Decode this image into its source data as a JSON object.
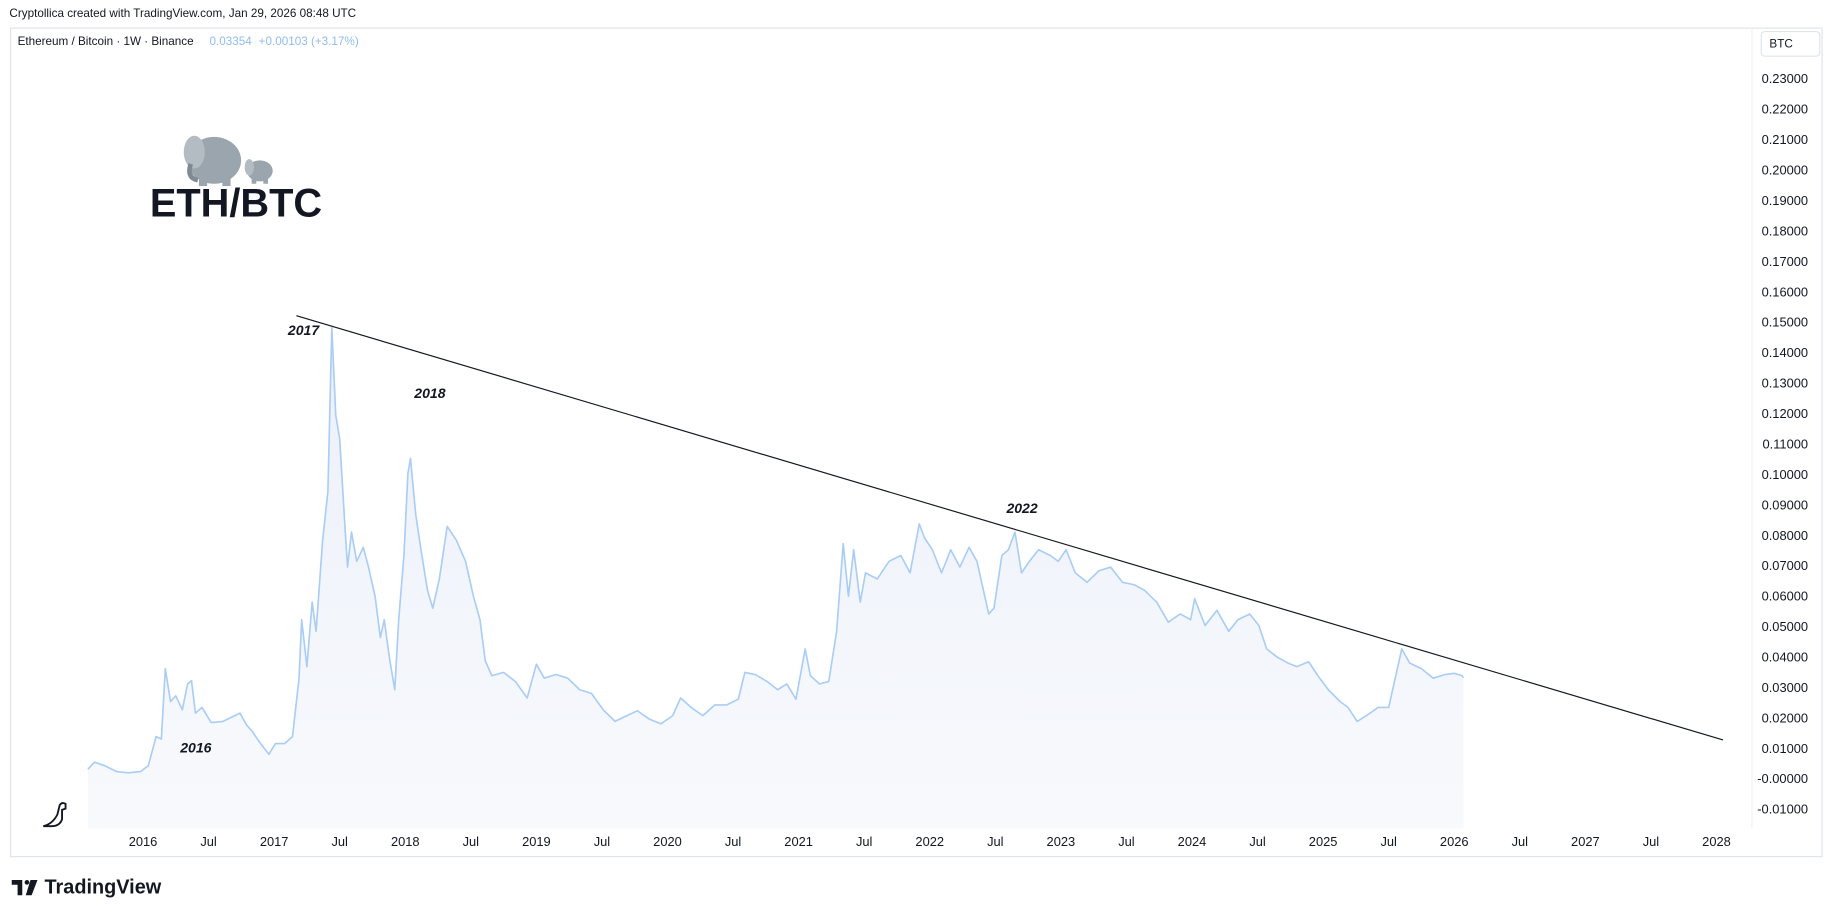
{
  "header": {
    "attribution": "Cryptollica created with TradingView.com, Jan 29, 2026 08:48 UTC"
  },
  "chart_data": {
    "type": "area",
    "title": "ETH/BTC",
    "last_price": "0.03354",
    "change": "+0.00103 (+3.17%)",
    "currency_button": "BTC",
    "annotations": [
      "2016",
      "2017",
      "2018",
      "2022"
    ],
    "x": [
      2015.58,
      2015.63,
      2015.71,
      2015.8,
      2015.89,
      2015.98,
      2016.04,
      2016.1,
      2016.14,
      2016.17,
      2016.21,
      2016.25,
      2016.3,
      2016.34,
      2016.37,
      2016.4,
      2016.45,
      2016.52,
      2016.61,
      2016.7,
      2016.74,
      2016.79,
      2016.83,
      2016.89,
      2016.96,
      2017.01,
      2017.08,
      2017.14,
      2017.19,
      2017.21,
      2017.25,
      2017.29,
      2017.32,
      2017.37,
      2017.41,
      2017.44,
      2017.47,
      2017.5,
      2017.54,
      2017.56,
      2017.59,
      2017.63,
      2017.68,
      2017.72,
      2017.77,
      2017.81,
      2017.84,
      2017.88,
      2017.92,
      2017.95,
      2017.99,
      2018.02,
      2018.04,
      2018.08,
      2018.12,
      2018.17,
      2018.21,
      2018.26,
      2018.32,
      2018.39,
      2018.46,
      2018.52,
      2018.57,
      2018.61,
      2018.66,
      2018.75,
      2018.84,
      2018.93,
      2019.0,
      2019.06,
      2019.15,
      2019.24,
      2019.33,
      2019.42,
      2019.51,
      2019.6,
      2019.69,
      2019.77,
      2019.86,
      2019.95,
      2020.04,
      2020.1,
      2020.18,
      2020.27,
      2020.36,
      2020.45,
      2020.54,
      2020.59,
      2020.67,
      2020.76,
      2020.84,
      2020.91,
      2020.98,
      2021.05,
      2021.09,
      2021.16,
      2021.23,
      2021.29,
      2021.34,
      2021.38,
      2021.42,
      2021.47,
      2021.51,
      2021.6,
      2021.69,
      2021.78,
      2021.85,
      2021.92,
      2021.96,
      2022.02,
      2022.09,
      2022.16,
      2022.23,
      2022.3,
      2022.36,
      2022.41,
      2022.45,
      2022.49,
      2022.55,
      2022.6,
      2022.65,
      2022.7,
      2022.76,
      2022.83,
      2022.92,
      2022.98,
      2023.04,
      2023.11,
      2023.2,
      2023.29,
      2023.38,
      2023.47,
      2023.56,
      2023.64,
      2023.73,
      2023.82,
      2023.91,
      2023.99,
      2024.02,
      2024.1,
      2024.19,
      2024.28,
      2024.35,
      2024.44,
      2024.51,
      2024.57,
      2024.65,
      2024.73,
      2024.8,
      2024.89,
      2024.96,
      2025.04,
      2025.13,
      2025.19,
      2025.26,
      2025.33,
      2025.42,
      2025.5,
      2025.55,
      2025.6,
      2025.66,
      2025.75,
      2025.84,
      2025.93,
      2026.0,
      2026.06,
      2026.07
    ],
    "series": [
      {
        "name": "Ethereum / Bitcoin · 1W · Binance",
        "color": "#a9cdf4",
        "values": [
          0.0035,
          0.0058,
          0.0046,
          0.0027,
          0.0023,
          0.0027,
          0.0046,
          0.0142,
          0.0134,
          0.0365,
          0.0257,
          0.0276,
          0.023,
          0.0315,
          0.0326,
          0.0219,
          0.0238,
          0.0188,
          0.0192,
          0.0211,
          0.0219,
          0.018,
          0.0161,
          0.0123,
          0.0084,
          0.0119,
          0.0119,
          0.0142,
          0.0334,
          0.0526,
          0.0372,
          0.0584,
          0.0488,
          0.0787,
          0.0948,
          0.1486,
          0.1198,
          0.1121,
          0.0833,
          0.0699,
          0.0814,
          0.0718,
          0.0764,
          0.0699,
          0.0603,
          0.0468,
          0.0526,
          0.0399,
          0.0296,
          0.0526,
          0.0737,
          0.1006,
          0.1056,
          0.0872,
          0.0756,
          0.0622,
          0.0564,
          0.066,
          0.0833,
          0.0787,
          0.0718,
          0.0603,
          0.0526,
          0.0392,
          0.0342,
          0.0353,
          0.0323,
          0.0269,
          0.038,
          0.0334,
          0.0346,
          0.0334,
          0.0296,
          0.0284,
          0.023,
          0.0192,
          0.0211,
          0.0227,
          0.02,
          0.0184,
          0.0211,
          0.0269,
          0.0238,
          0.0211,
          0.0246,
          0.0246,
          0.0265,
          0.0353,
          0.0346,
          0.0323,
          0.0296,
          0.0315,
          0.0265,
          0.043,
          0.0342,
          0.0315,
          0.0323,
          0.0488,
          0.0776,
          0.0603,
          0.0756,
          0.0584,
          0.068,
          0.066,
          0.0718,
          0.0737,
          0.068,
          0.0841,
          0.0795,
          0.0756,
          0.068,
          0.0756,
          0.0699,
          0.0764,
          0.0718,
          0.0622,
          0.0545,
          0.0564,
          0.0737,
          0.0756,
          0.0814,
          0.068,
          0.0718,
          0.0756,
          0.0737,
          0.0718,
          0.0756,
          0.068,
          0.0649,
          0.0687,
          0.0699,
          0.0649,
          0.0641,
          0.0622,
          0.0584,
          0.0518,
          0.0545,
          0.0526,
          0.0595,
          0.0507,
          0.0557,
          0.0488,
          0.0526,
          0.0545,
          0.0507,
          0.043,
          0.0403,
          0.0384,
          0.0372,
          0.0388,
          0.0342,
          0.0296,
          0.0257,
          0.0238,
          0.0192,
          0.0211,
          0.0238,
          0.0238,
          0.0334,
          0.043,
          0.0384,
          0.0365,
          0.0334,
          0.0346,
          0.035,
          0.0342,
          0.0335
        ]
      }
    ],
    "trendline": {
      "x": [
        2017.17,
        2028.05
      ],
      "values": [
        0.1525,
        0.0131
      ],
      "color": "#131722"
    },
    "xlim": [
      2014.99,
      2028.27
    ],
    "ylim": [
      -0.016,
      0.247
    ],
    "xticks": [
      2016,
      {
        "value": 2016.5,
        "label": "Jul"
      },
      2017,
      {
        "value": 2017.5,
        "label": "Jul"
      },
      2018,
      {
        "value": 2018.5,
        "label": "Jul"
      },
      2019,
      {
        "value": 2019.5,
        "label": "Jul"
      },
      2020,
      {
        "value": 2020.5,
        "label": "Jul"
      },
      2021,
      {
        "value": 2021.5,
        "label": "Jul"
      },
      2022,
      {
        "value": 2022.5,
        "label": "Jul"
      },
      2023,
      {
        "value": 2023.5,
        "label": "Jul"
      },
      2024,
      {
        "value": 2024.5,
        "label": "Jul"
      },
      2025,
      {
        "value": 2025.5,
        "label": "Jul"
      },
      2026,
      {
        "value": 2026.5,
        "label": "Jul"
      },
      2027,
      {
        "value": 2027.5,
        "label": "Jul"
      },
      2028
    ],
    "yticks": [
      {
        "value": 0.23,
        "label": "0.23000"
      },
      {
        "value": 0.22,
        "label": "0.22000"
      },
      {
        "value": 0.21,
        "label": "0.21000"
      },
      {
        "value": 0.2,
        "label": "0.20000"
      },
      {
        "value": 0.19,
        "label": "0.19000"
      },
      {
        "value": 0.18,
        "label": "0.18000"
      },
      {
        "value": 0.17,
        "label": "0.17000"
      },
      {
        "value": 0.16,
        "label": "0.16000"
      },
      {
        "value": 0.15,
        "label": "0.15000"
      },
      {
        "value": 0.14,
        "label": "0.14000"
      },
      {
        "value": 0.13,
        "label": "0.13000"
      },
      {
        "value": 0.12,
        "label": "0.12000"
      },
      {
        "value": 0.11,
        "label": "0.11000"
      },
      {
        "value": 0.1,
        "label": "0.10000"
      },
      {
        "value": 0.09,
        "label": "0.09000"
      },
      {
        "value": 0.08,
        "label": "0.08000"
      },
      {
        "value": 0.07,
        "label": "0.07000"
      },
      {
        "value": 0.06,
        "label": "0.06000"
      },
      {
        "value": 0.05,
        "label": "0.05000"
      },
      {
        "value": 0.04,
        "label": "0.04000"
      },
      {
        "value": 0.03,
        "label": "0.03000"
      },
      {
        "value": 0.02,
        "label": "0.02000"
      },
      {
        "value": 0.01,
        "label": "0.01000"
      },
      {
        "value": 0,
        "label": "-0.00000"
      },
      {
        "value": -0.01,
        "label": "-0.01000"
      }
    ],
    "grid": false
  },
  "footer": {
    "brand": "TradingView"
  }
}
